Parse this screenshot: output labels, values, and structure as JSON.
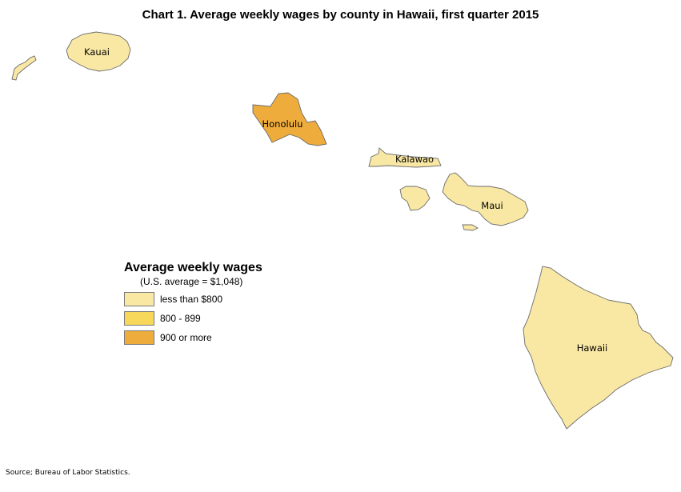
{
  "title": "Chart 1. Average weekly wages by county in Hawaii, first quarter 2015",
  "colors": {
    "low": "#f9e8a4",
    "mid": "#f7d85a",
    "high": "#eeac3c",
    "border": "#6b6b6b"
  },
  "counties": [
    {
      "name": "Kauai",
      "category": "less than $800"
    },
    {
      "name": "Honolulu",
      "category": "900 or more"
    },
    {
      "name": "Kalawao",
      "category": "less than $800"
    },
    {
      "name": "Maui",
      "category": "less than $800"
    },
    {
      "name": "Hawaii",
      "category": "less than $800"
    }
  ],
  "legend": {
    "title": "Average weekly wages",
    "subtitle": "(U.S. average = $1,048)",
    "items": [
      {
        "label": "less than $800",
        "color": "#f9e8a4"
      },
      {
        "label": "800 - 899",
        "color": "#f7d85a"
      },
      {
        "label": "900 or more",
        "color": "#eeac3c"
      }
    ]
  },
  "source": "Source; Bureau of Labor Statistics."
}
